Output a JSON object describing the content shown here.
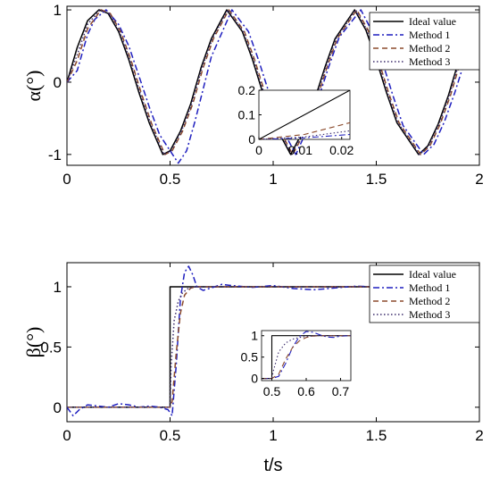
{
  "chart_data": [
    {
      "type": "line",
      "ylabel": "α(°)",
      "xlim": [
        0,
        2
      ],
      "ylim": [
        -1.15,
        1.05
      ],
      "xticks": [
        "0",
        "0.5",
        "1",
        "1.5",
        "2"
      ],
      "yticks": [
        "-1",
        "0",
        "1"
      ],
      "legend": {
        "placement": "top-right",
        "entries": [
          "Ideal value",
          "Method 1",
          "Method 2",
          "Method 3"
        ]
      },
      "series": [
        {
          "name": "Ideal value",
          "color": "#000000",
          "style": "solid",
          "x": [
            0.0,
            0.05,
            0.1,
            0.155,
            0.2,
            0.25,
            0.3,
            0.35,
            0.4,
            0.465,
            0.5,
            0.55,
            0.6,
            0.65,
            0.7,
            0.775,
            0.85,
            0.9,
            0.95,
            1.0,
            1.085,
            1.15,
            1.2,
            1.25,
            1.3,
            1.395,
            1.45,
            1.5,
            1.55,
            1.6,
            1.705,
            1.75,
            1.8,
            1.85,
            1.9,
            1.95
          ],
          "y": [
            0.0,
            0.48,
            0.85,
            1.0,
            0.95,
            0.7,
            0.31,
            -0.15,
            -0.57,
            -1.0,
            -0.95,
            -0.68,
            -0.3,
            0.2,
            0.6,
            1.0,
            0.7,
            0.31,
            -0.15,
            -0.55,
            -1.0,
            -0.65,
            -0.25,
            0.2,
            0.6,
            1.0,
            0.72,
            0.31,
            -0.15,
            -0.56,
            -1.0,
            -0.88,
            -0.58,
            -0.18,
            0.3,
            0.72
          ]
        },
        {
          "name": "Method 1",
          "color": "#1f1fbf",
          "style": "dash-dot",
          "x": [
            0.0,
            0.05,
            0.1,
            0.135,
            0.19,
            0.25,
            0.3,
            0.35,
            0.4,
            0.45,
            0.54,
            0.58,
            0.62,
            0.66,
            0.7,
            0.8,
            0.88,
            0.93,
            0.98,
            1.02,
            1.11,
            1.17,
            1.22,
            1.27,
            1.32,
            1.425,
            1.48,
            1.53,
            1.58,
            1.63,
            1.73,
            1.78,
            1.83,
            1.88,
            1.93
          ],
          "y": [
            0.0,
            0.16,
            0.66,
            0.87,
            1.0,
            0.8,
            0.5,
            0.08,
            -0.35,
            -0.73,
            -1.12,
            -0.95,
            -0.55,
            -0.1,
            0.35,
            1.0,
            0.7,
            0.3,
            -0.15,
            -0.52,
            -1.0,
            -0.62,
            -0.22,
            0.22,
            0.62,
            1.0,
            0.7,
            0.28,
            -0.18,
            -0.6,
            -1.0,
            -0.86,
            -0.55,
            -0.15,
            0.3
          ]
        },
        {
          "name": "Method 2",
          "color": "#8b4a2b",
          "style": "dashed",
          "x": [
            0.0,
            0.05,
            0.1,
            0.165,
            0.21,
            0.26,
            0.31,
            0.36,
            0.41,
            0.475,
            0.51,
            0.56,
            0.61,
            0.66,
            0.71,
            0.785,
            0.86,
            0.91,
            0.96,
            1.01,
            1.095,
            1.16,
            1.21,
            1.26,
            1.31,
            1.405,
            1.46,
            1.51,
            1.56,
            1.61,
            1.715,
            1.76,
            1.81,
            1.86,
            1.91,
            1.96
          ],
          "y": [
            0.0,
            0.3,
            0.74,
            1.0,
            0.95,
            0.7,
            0.31,
            -0.15,
            -0.57,
            -1.0,
            -0.95,
            -0.68,
            -0.3,
            0.2,
            0.6,
            1.0,
            0.7,
            0.31,
            -0.15,
            -0.55,
            -1.0,
            -0.65,
            -0.25,
            0.2,
            0.6,
            1.0,
            0.72,
            0.31,
            -0.15,
            -0.56,
            -1.0,
            -0.88,
            -0.58,
            -0.18,
            0.3,
            0.72
          ]
        },
        {
          "name": "Method 3",
          "color": "#3b2b6b",
          "style": "dotted",
          "x": [
            0.0,
            0.05,
            0.1,
            0.16,
            0.205,
            0.255,
            0.305,
            0.355,
            0.405,
            0.47,
            0.505,
            0.555,
            0.605,
            0.655,
            0.705,
            0.78,
            0.855,
            0.905,
            0.955,
            1.005,
            1.09,
            1.155,
            1.205,
            1.255,
            1.305,
            1.4,
            1.455,
            1.505,
            1.555,
            1.605,
            1.71,
            1.755,
            1.805,
            1.855,
            1.905,
            1.955
          ],
          "y": [
            0.0,
            0.38,
            0.8,
            1.0,
            0.95,
            0.7,
            0.31,
            -0.15,
            -0.57,
            -1.0,
            -0.95,
            -0.68,
            -0.3,
            0.2,
            0.6,
            1.0,
            0.7,
            0.31,
            -0.15,
            -0.55,
            -1.0,
            -0.65,
            -0.25,
            0.2,
            0.6,
            1.0,
            0.72,
            0.31,
            -0.15,
            -0.56,
            -1.0,
            -0.88,
            -0.58,
            -0.18,
            0.3,
            0.72
          ]
        }
      ],
      "inset": {
        "xlim": [
          0,
          0.022
        ],
        "ylim": [
          0,
          0.2
        ],
        "xticks": [
          "0",
          "0.01",
          "0.02"
        ],
        "yticks": [
          "0",
          "0.1",
          "0.2"
        ],
        "series": [
          {
            "name": "Ideal value",
            "color": "#000000",
            "style": "solid",
            "x": [
              0,
              0.022
            ],
            "y": [
              0,
              0.2
            ]
          },
          {
            "name": "Method 1",
            "color": "#1f1fbf",
            "style": "dash-dot",
            "x": [
              0,
              0.011,
              0.022
            ],
            "y": [
              0,
              0.006,
              0.02
            ]
          },
          {
            "name": "Method 2",
            "color": "#8b4a2b",
            "style": "dashed",
            "x": [
              0,
              0.011,
              0.022
            ],
            "y": [
              0,
              0.02,
              0.068
            ]
          },
          {
            "name": "Method 3",
            "color": "#3b2b6b",
            "style": "dotted",
            "x": [
              0,
              0.011,
              0.022
            ],
            "y": [
              0,
              0.01,
              0.035
            ]
          }
        ]
      }
    },
    {
      "type": "line",
      "ylabel": "β(°)",
      "xlabel": "t/s",
      "xlim": [
        0,
        2
      ],
      "ylim": [
        -0.12,
        1.2
      ],
      "xticks": [
        "0",
        "0.5",
        "1",
        "1.5",
        "2"
      ],
      "yticks": [
        "0",
        "0.5",
        "1"
      ],
      "legend": {
        "placement": "top-right",
        "entries": [
          "Ideal value",
          "Method 1",
          "Method 2",
          "Method 3"
        ]
      },
      "series": [
        {
          "name": "Ideal value",
          "color": "#000000",
          "style": "solid",
          "x": [
            0,
            0.5,
            0.5,
            2
          ],
          "y": [
            0,
            0,
            1,
            1
          ]
        },
        {
          "name": "Method 1",
          "color": "#1f1fbf",
          "style": "dash-dot",
          "x": [
            0,
            0.03,
            0.06,
            0.1,
            0.15,
            0.2,
            0.25,
            0.3,
            0.35,
            0.4,
            0.45,
            0.49,
            0.51,
            0.53,
            0.55,
            0.57,
            0.59,
            0.61,
            0.63,
            0.66,
            0.7,
            0.75,
            0.8,
            0.9,
            1.0,
            1.1,
            1.2,
            1.3,
            1.4,
            1.5
          ],
          "y": [
            0,
            -0.07,
            -0.02,
            0.02,
            0.01,
            0.0,
            0.03,
            0.02,
            0.0,
            0.01,
            0.0,
            -0.02,
            -0.07,
            0.35,
            0.9,
            1.12,
            1.17,
            1.1,
            1.0,
            0.97,
            0.99,
            1.02,
            1.01,
            0.995,
            1.01,
            0.985,
            0.975,
            0.99,
            1.005,
            1.0
          ]
        },
        {
          "name": "Method 2",
          "color": "#8b4a2b",
          "style": "dashed",
          "x": [
            0,
            0.5,
            0.51,
            0.53,
            0.55,
            0.57,
            0.6,
            0.63,
            0.67,
            0.7,
            0.8,
            1.0,
            1.5
          ],
          "y": [
            0,
            0,
            0.05,
            0.45,
            0.78,
            0.93,
            0.99,
            1.0,
            1.0,
            1.0,
            1.0,
            1.0,
            1.0
          ]
        },
        {
          "name": "Method 3",
          "color": "#3b2b6b",
          "style": "dotted",
          "x": [
            0,
            0.5,
            0.505,
            0.52,
            0.54,
            0.56,
            0.59,
            0.62,
            0.66,
            0.7,
            0.8,
            1.0,
            1.5
          ],
          "y": [
            0,
            0,
            0.35,
            0.72,
            0.88,
            0.95,
            0.99,
            1.0,
            1.0,
            1.0,
            1.0,
            1.0,
            1.0
          ]
        }
      ],
      "inset": {
        "xlim": [
          0.47,
          0.73
        ],
        "ylim": [
          -0.05,
          1.12
        ],
        "xticks": [
          "0.5",
          "0.6",
          "0.7"
        ],
        "yticks": [
          "0",
          "0.5",
          "1"
        ],
        "series": [
          {
            "name": "Ideal value",
            "color": "#000000",
            "style": "solid",
            "x": [
              0.47,
              0.5,
              0.5,
              0.73
            ],
            "y": [
              0,
              0,
              1,
              1
            ]
          },
          {
            "name": "Method 1",
            "color": "#1f1fbf",
            "style": "dash-dot",
            "x": [
              0.47,
              0.5,
              0.52,
              0.54,
              0.56,
              0.58,
              0.6,
              0.62,
              0.64,
              0.66,
              0.68,
              0.7,
              0.73
            ],
            "y": [
              0,
              0,
              0.05,
              0.35,
              0.72,
              0.98,
              1.1,
              1.08,
              1.02,
              0.97,
              0.96,
              0.99,
              1.0
            ]
          },
          {
            "name": "Method 2",
            "color": "#8b4a2b",
            "style": "dashed",
            "x": [
              0.47,
              0.5,
              0.52,
              0.54,
              0.56,
              0.58,
              0.6,
              0.62,
              0.65,
              0.68,
              0.73
            ],
            "y": [
              0,
              0,
              0.1,
              0.45,
              0.72,
              0.88,
              0.96,
              0.99,
              1.0,
              1.0,
              1.0
            ]
          },
          {
            "name": "Method 3",
            "color": "#3b2b6b",
            "style": "dotted",
            "x": [
              0.47,
              0.5,
              0.505,
              0.52,
              0.54,
              0.56,
              0.58,
              0.6,
              0.63,
              0.66,
              0.73
            ],
            "y": [
              0,
              0,
              0.2,
              0.62,
              0.83,
              0.92,
              0.96,
              0.98,
              1.0,
              1.0,
              1.0
            ]
          }
        ]
      }
    }
  ]
}
